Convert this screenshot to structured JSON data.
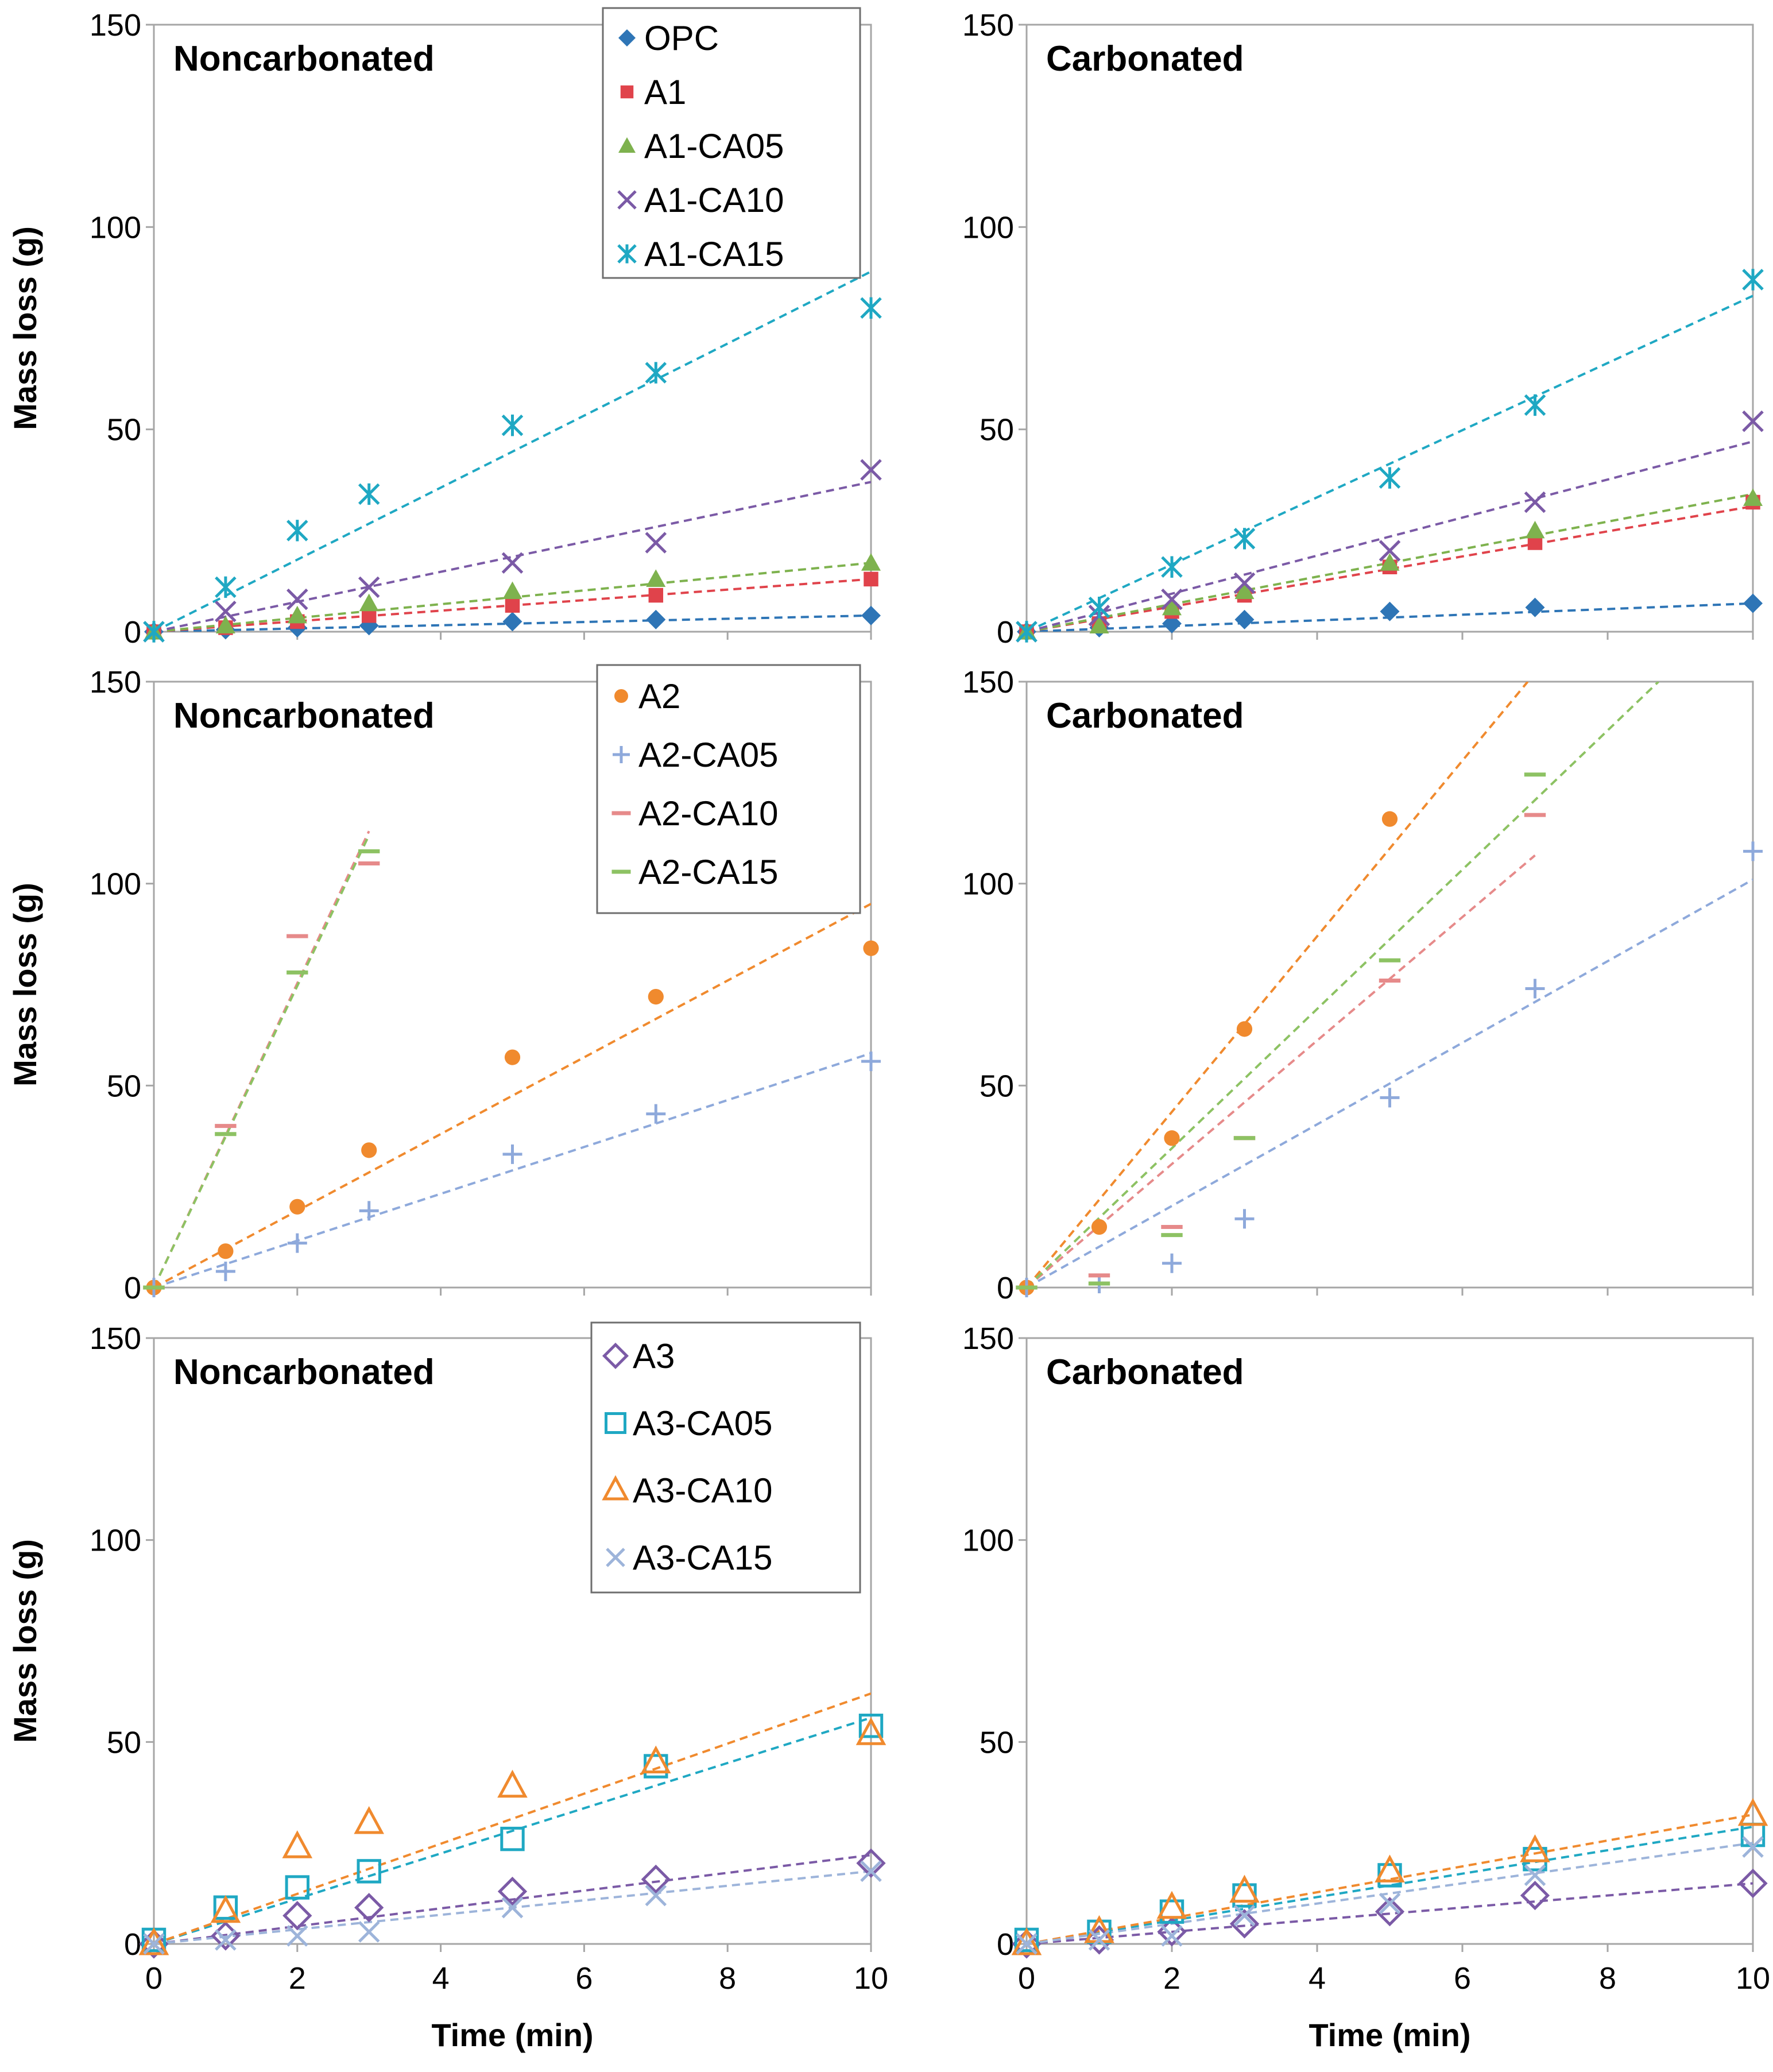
{
  "chart_data": [
    {
      "type": "scatter",
      "title": "Noncarbonated",
      "xlabel": "",
      "ylabel": "Mass loss (g)",
      "xlim": [
        0,
        10
      ],
      "ylim": [
        0,
        150
      ],
      "xticks": [],
      "yticks": [
        0,
        50,
        100,
        150
      ],
      "legend": {
        "position": "top-right",
        "entries": [
          "OPC",
          "A1",
          "A1-CA05",
          "A1-CA10",
          "A1-CA15"
        ]
      },
      "series": [
        {
          "name": "OPC",
          "marker": "diamond",
          "color": "#2E75B6",
          "x": [
            0,
            1,
            2,
            3,
            5,
            7,
            10
          ],
          "y": [
            0,
            0.5,
            1,
            1.5,
            2.5,
            3,
            4
          ],
          "trend": [
            [
              0,
              0
            ],
            [
              10,
              4
            ]
          ]
        },
        {
          "name": "A1",
          "marker": "square",
          "color": "#E0434B",
          "x": [
            0,
            1,
            2,
            3,
            5,
            7,
            10
          ],
          "y": [
            0,
            1,
            2.5,
            4,
            6.5,
            9,
            13
          ],
          "trend": [
            [
              0,
              0
            ],
            [
              10,
              13
            ]
          ]
        },
        {
          "name": "A1-CA05",
          "marker": "triangle",
          "color": "#7EB24E",
          "x": [
            0,
            1,
            2,
            3,
            5,
            7,
            10
          ],
          "y": [
            0,
            1.5,
            4,
            7,
            10,
            13,
            17
          ],
          "trend": [
            [
              0,
              0
            ],
            [
              10,
              17
            ]
          ]
        },
        {
          "name": "A1-CA10",
          "marker": "x",
          "color": "#7B5AA6",
          "x": [
            0,
            1,
            2,
            3,
            5,
            7,
            10
          ],
          "y": [
            0,
            5,
            8,
            11,
            17,
            22,
            40
          ],
          "trend": [
            [
              0,
              0
            ],
            [
              10,
              37
            ]
          ]
        },
        {
          "name": "A1-CA15",
          "marker": "asterisk",
          "color": "#1FA8C3",
          "x": [
            0,
            1,
            2,
            3,
            5,
            7,
            10
          ],
          "y": [
            0,
            11,
            25,
            34,
            51,
            64,
            80
          ],
          "trend": [
            [
              0,
              0
            ],
            [
              10,
              89
            ]
          ]
        }
      ]
    },
    {
      "type": "scatter",
      "title": "Carbonated",
      "xlabel": "",
      "ylabel": "",
      "xlim": [
        0,
        10
      ],
      "ylim": [
        0,
        150
      ],
      "xticks": [],
      "yticks": [
        0,
        50,
        100,
        150
      ],
      "series": [
        {
          "name": "OPC",
          "marker": "diamond",
          "color": "#2E75B6",
          "x": [
            0,
            1,
            2,
            3,
            5,
            7,
            10
          ],
          "y": [
            0,
            1,
            2,
            3,
            5,
            6,
            7
          ],
          "trend": [
            [
              0,
              0
            ],
            [
              10,
              7
            ]
          ]
        },
        {
          "name": "A1",
          "marker": "square",
          "color": "#E0434B",
          "x": [
            0,
            1,
            2,
            3,
            5,
            7,
            10
          ],
          "y": [
            0,
            2,
            5,
            9,
            16,
            22,
            32
          ],
          "trend": [
            [
              0,
              0
            ],
            [
              10,
              31
            ]
          ]
        },
        {
          "name": "A1-CA05",
          "marker": "triangle",
          "color": "#7EB24E",
          "x": [
            0,
            1,
            2,
            3,
            5,
            7,
            10
          ],
          "y": [
            0,
            1.5,
            6,
            10,
            17,
            25,
            33
          ],
          "trend": [
            [
              0,
              0
            ],
            [
              10,
              34
            ]
          ]
        },
        {
          "name": "A1-CA10",
          "marker": "x",
          "color": "#7B5AA6",
          "x": [
            0,
            1,
            2,
            3,
            5,
            7,
            10
          ],
          "y": [
            0,
            4,
            8,
            12,
            20,
            32,
            52
          ],
          "trend": [
            [
              0,
              0
            ],
            [
              10,
              47
            ]
          ]
        },
        {
          "name": "A1-CA15",
          "marker": "asterisk",
          "color": "#1FA8C3",
          "x": [
            0,
            1,
            2,
            3,
            5,
            7,
            10
          ],
          "y": [
            0,
            6,
            16,
            23,
            38,
            56,
            87
          ],
          "trend": [
            [
              0,
              0
            ],
            [
              10,
              83
            ]
          ]
        }
      ]
    },
    {
      "type": "scatter",
      "title": "Noncarbonated",
      "xlabel": "",
      "ylabel": "Mass loss (g)",
      "xlim": [
        0,
        10
      ],
      "ylim": [
        0,
        150
      ],
      "xticks": [],
      "yticks": [
        0,
        50,
        100,
        150
      ],
      "legend": {
        "position": "top-right",
        "entries": [
          "A2",
          "A2-CA05",
          "A2-CA10",
          "A2-CA15"
        ]
      },
      "series": [
        {
          "name": "A2",
          "marker": "circle",
          "color": "#F08A2E",
          "x": [
            0,
            1,
            2,
            3,
            5,
            7,
            10
          ],
          "y": [
            0,
            9,
            20,
            34,
            57,
            72,
            84
          ],
          "trend": [
            [
              0,
              0
            ],
            [
              10,
              95
            ]
          ]
        },
        {
          "name": "A2-CA05",
          "marker": "plus",
          "color": "#8EA9DB",
          "x": [
            0,
            1,
            2,
            3,
            5,
            7,
            10
          ],
          "y": [
            0,
            4,
            11,
            19,
            33,
            43,
            56
          ],
          "trend": [
            [
              0,
              0
            ],
            [
              10,
              58
            ]
          ]
        },
        {
          "name": "A2-CA10",
          "marker": "dash",
          "color": "#E68A8A",
          "x": [
            0,
            1,
            2,
            3
          ],
          "y": [
            0,
            40,
            87,
            105
          ],
          "trend": [
            [
              0,
              0
            ],
            [
              3,
              113
            ]
          ]
        },
        {
          "name": "A2-CA15",
          "marker": "dash",
          "color": "#8DC263",
          "x": [
            0,
            1,
            2,
            3
          ],
          "y": [
            0,
            38,
            78,
            108
          ],
          "trend": [
            [
              0,
              0
            ],
            [
              3,
              112
            ]
          ]
        }
      ]
    },
    {
      "type": "scatter",
      "title": "Carbonated",
      "xlabel": "",
      "ylabel": "",
      "xlim": [
        0,
        10
      ],
      "ylim": [
        0,
        150
      ],
      "xticks": [],
      "yticks": [
        0,
        50,
        100,
        150
      ],
      "series": [
        {
          "name": "A2",
          "marker": "circle",
          "color": "#F08A2E",
          "x": [
            0,
            1,
            2,
            3,
            5
          ],
          "y": [
            0,
            15,
            37,
            64,
            116
          ],
          "trend": [
            [
              0,
              0
            ],
            [
              6.9,
              150
            ]
          ]
        },
        {
          "name": "A2-CA05",
          "marker": "plus",
          "color": "#8EA9DB",
          "x": [
            0,
            1,
            2,
            3,
            5,
            7,
            10
          ],
          "y": [
            0,
            1,
            6,
            17,
            47,
            74,
            108
          ],
          "trend": [
            [
              0,
              0
            ],
            [
              10,
              101
            ]
          ]
        },
        {
          "name": "A2-CA10",
          "marker": "dash",
          "color": "#E68A8A",
          "x": [
            0,
            1,
            2,
            3,
            5,
            7
          ],
          "y": [
            0,
            3,
            15,
            37,
            76,
            117
          ],
          "trend": [
            [
              0,
              0
            ],
            [
              7,
              107
            ]
          ]
        },
        {
          "name": "A2-CA15",
          "marker": "dash",
          "color": "#8DC263",
          "x": [
            0,
            1,
            2,
            3,
            5,
            7
          ],
          "y": [
            0,
            1,
            13,
            37,
            81,
            127
          ],
          "trend": [
            [
              0,
              0
            ],
            [
              8.7,
              150
            ]
          ]
        }
      ]
    },
    {
      "type": "scatter",
      "title": "Noncarbonated",
      "xlabel": "Time (min)",
      "ylabel": "Mass loss (g)",
      "xlim": [
        0,
        10
      ],
      "ylim": [
        0,
        150
      ],
      "xticks": [
        0,
        2,
        4,
        6,
        8,
        10
      ],
      "yticks": [
        0,
        50,
        100,
        150
      ],
      "legend": {
        "position": "top-right",
        "entries": [
          "A3",
          "A3-CA05",
          "A3-CA10",
          "A3-CA15"
        ]
      },
      "series": [
        {
          "name": "A3",
          "marker": "open-diamond",
          "color": "#7B5AA6",
          "x": [
            0,
            1,
            2,
            3,
            5,
            7,
            10
          ],
          "y": [
            0,
            2,
            7,
            9,
            13,
            16,
            20
          ],
          "trend": [
            [
              0,
              0
            ],
            [
              10,
              22
            ]
          ]
        },
        {
          "name": "A3-CA05",
          "marker": "open-square",
          "color": "#1FA8C3",
          "x": [
            0,
            1,
            2,
            3,
            5,
            7,
            10
          ],
          "y": [
            1,
            9,
            14,
            18,
            26,
            44,
            54
          ],
          "trend": [
            [
              0,
              0
            ],
            [
              10,
              56
            ]
          ]
        },
        {
          "name": "A3-CA10",
          "marker": "open-triangle",
          "color": "#F08A2E",
          "x": [
            0,
            1,
            2,
            3,
            5,
            7,
            10
          ],
          "y": [
            0,
            8,
            24,
            30,
            39,
            45,
            52
          ],
          "trend": [
            [
              0,
              0
            ],
            [
              10,
              62
            ]
          ]
        },
        {
          "name": "A3-CA15",
          "marker": "x",
          "color": "#9DB4DA",
          "x": [
            0,
            1,
            2,
            3,
            5,
            7,
            10
          ],
          "y": [
            0,
            1,
            2,
            3,
            9,
            12,
            18
          ],
          "trend": [
            [
              0,
              0
            ],
            [
              10,
              18
            ]
          ]
        }
      ]
    },
    {
      "type": "scatter",
      "title": "Carbonated",
      "xlabel": "Time (min)",
      "ylabel": "",
      "xlim": [
        0,
        10
      ],
      "ylim": [
        0,
        150
      ],
      "xticks": [
        0,
        2,
        4,
        6,
        8,
        10
      ],
      "yticks": [
        0,
        50,
        100,
        150
      ],
      "series": [
        {
          "name": "A3",
          "marker": "open-diamond",
          "color": "#7B5AA6",
          "x": [
            0,
            1,
            2,
            3,
            5,
            7,
            10
          ],
          "y": [
            0,
            1,
            3,
            5,
            8,
            12,
            15
          ],
          "trend": [
            [
              0,
              0
            ],
            [
              10,
              15
            ]
          ]
        },
        {
          "name": "A3-CA05",
          "marker": "open-square",
          "color": "#1FA8C3",
          "x": [
            0,
            1,
            2,
            3,
            5,
            7,
            10
          ],
          "y": [
            1,
            3,
            8,
            12,
            17,
            21,
            27
          ],
          "trend": [
            [
              0,
              0
            ],
            [
              10,
              29
            ]
          ]
        },
        {
          "name": "A3-CA10",
          "marker": "open-triangle",
          "color": "#F08A2E",
          "x": [
            0,
            1,
            2,
            3,
            5,
            7,
            10
          ],
          "y": [
            0,
            3,
            9,
            13,
            18,
            23,
            32
          ],
          "trend": [
            [
              0,
              0
            ],
            [
              10,
              32
            ]
          ]
        },
        {
          "name": "A3-CA15",
          "marker": "x",
          "color": "#9DB4DA",
          "x": [
            0,
            1,
            2,
            3,
            5,
            7,
            10
          ],
          "y": [
            0,
            1,
            2,
            7,
            10,
            17,
            24
          ],
          "trend": [
            [
              0,
              0
            ],
            [
              10,
              25
            ]
          ]
        }
      ]
    }
  ]
}
